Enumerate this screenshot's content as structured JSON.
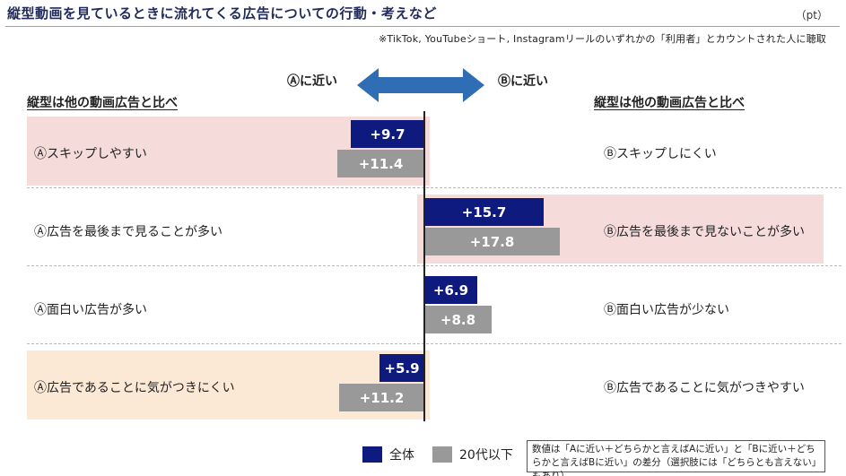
{
  "header": {
    "title": "縦型動画を見ているときに流れてくる広告についての行動・考えなど",
    "unit": "（pt）",
    "note": "※TikTok, YouTubeショート, Instagramリールのいずれかの「利用者」とカウントされた人に聴取"
  },
  "axis_labels": {
    "near_a": "Ⓐに近い",
    "near_b": "Ⓑに近い"
  },
  "section_heads": {
    "left": "縦型は他の動画広告と比べ",
    "right": "縦型は他の動画広告と比べ"
  },
  "legend": {
    "all": "全体",
    "age20": "20代以下",
    "color_all": "#0e1a7e",
    "color_age20": "#999999"
  },
  "footnote": "数値は「Aに近い＋どちらかと言えばAに近い」と「Bに近い＋どちらかと言えばBに近い」の差分（選択肢には「どちらとも言えない」もあり）",
  "chart_data": {
    "type": "bar",
    "orientation": "horizontal-diverging",
    "series": [
      {
        "name": "全体",
        "color": "#0e1a7e"
      },
      {
        "name": "20代以下",
        "color": "#999999"
      }
    ],
    "rows": [
      {
        "a_label": "Ⓐスキップしやすい",
        "b_label": "Ⓑスキップしにくい",
        "side": "A",
        "highlight": "pink",
        "values": [
          9.7,
          11.4
        ],
        "labels": [
          "+9.7",
          "+11.4"
        ]
      },
      {
        "a_label": "Ⓐ広告を最後まで見ることが多い",
        "b_label": "Ⓑ広告を最後まで見ないことが多い",
        "side": "B",
        "highlight": "pink",
        "values": [
          15.7,
          17.8
        ],
        "labels": [
          "+15.7",
          "+17.8"
        ]
      },
      {
        "a_label": "Ⓐ面白い広告が多い",
        "b_label": "Ⓑ面白い広告が少ない",
        "side": "B",
        "highlight": "none",
        "values": [
          6.9,
          8.8
        ],
        "labels": [
          "+6.9",
          "+8.8"
        ]
      },
      {
        "a_label": "Ⓐ広告であることに気がつきにくい",
        "b_label": "Ⓑ広告であることに気がつきやすい",
        "side": "A",
        "highlight": "peach",
        "values": [
          5.9,
          11.2
        ],
        "labels": [
          "+5.9",
          "+11.2"
        ]
      }
    ]
  }
}
